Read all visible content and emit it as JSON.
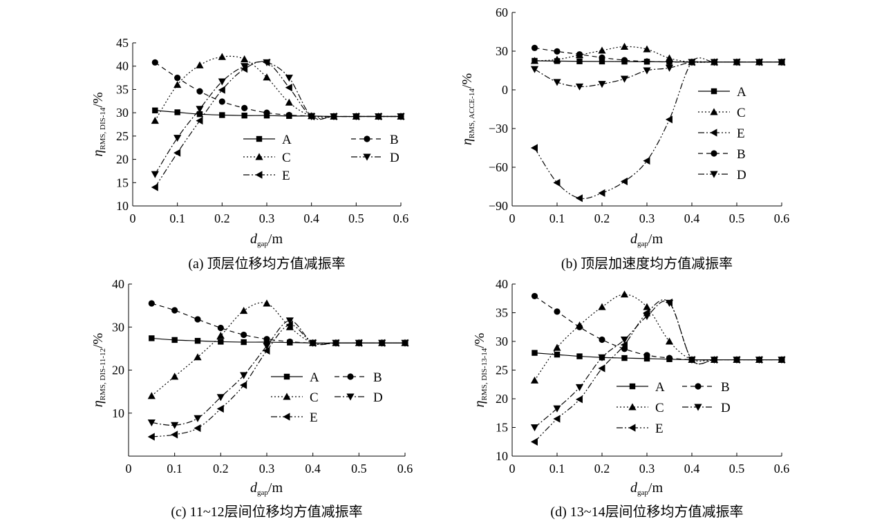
{
  "chart_data": [
    {
      "type": "line",
      "caption": "(a) 顶层位移均方值减振率",
      "xlabel_main": "d",
      "xlabel_sub": "gap",
      "xlabel_unit": "/m",
      "ylabel_main": "η",
      "ylabel_sub": "RMS, DIS-14",
      "ylabel_unit": "/%",
      "xlim": [
        0,
        0.6
      ],
      "ylim": [
        10,
        45
      ],
      "xticks": [
        "0",
        "0.1",
        "0.2",
        "0.3",
        "0.4",
        "0.5",
        "0.6"
      ],
      "yticks": [
        "10",
        "15",
        "20",
        "25",
        "30",
        "35",
        "40",
        "45"
      ],
      "x": [
        0.05,
        0.1,
        0.15,
        0.2,
        0.25,
        0.3,
        0.35,
        0.4,
        0.45,
        0.5,
        0.55,
        0.6
      ],
      "series": [
        {
          "name": "A",
          "marker": "square",
          "dash": "",
          "values": [
            30.5,
            30.1,
            29.7,
            29.5,
            29.4,
            29.4,
            29.3,
            29.3,
            29.2,
            29.2,
            29.2,
            29.2
          ]
        },
        {
          "name": "B",
          "marker": "circle",
          "dash": "7 5",
          "values": [
            40.8,
            37.5,
            34.6,
            32.4,
            31.0,
            30.0,
            29.5,
            29.3,
            29.2,
            29.2,
            29.2,
            29.2
          ]
        },
        {
          "name": "C",
          "marker": "triangle-up",
          "dash": "2 3",
          "values": [
            28.3,
            36.0,
            40.2,
            42.0,
            41.5,
            37.6,
            32.2,
            29.3,
            29.2,
            29.2,
            29.2,
            29.2
          ]
        },
        {
          "name": "D",
          "marker": "triangle-down",
          "dash": "9 3 2 3",
          "values": [
            16.8,
            24.6,
            30.8,
            36.7,
            40.0,
            40.8,
            37.5,
            29.2,
            29.2,
            29.2,
            29.2,
            29.2
          ]
        },
        {
          "name": "E",
          "marker": "triangle-left",
          "dash": "9 3 2 3 2 3",
          "values": [
            14.0,
            21.4,
            28.3,
            34.9,
            39.4,
            40.8,
            35.4,
            29.2,
            29.2,
            29.2,
            29.2,
            29.2
          ]
        }
      ],
      "legend": [
        {
          "name": "A",
          "marker": "square",
          "dash": ""
        },
        {
          "name": "B",
          "marker": "circle",
          "dash": "7 5"
        },
        {
          "name": "C",
          "marker": "triangle-up",
          "dash": "2 3"
        },
        {
          "name": "D",
          "marker": "triangle-down",
          "dash": "9 3 2 3"
        },
        {
          "name": "E",
          "marker": "triangle-left",
          "dash": "9 3 2 3 2 3"
        }
      ],
      "legend_columns": 2,
      "legend_placement": "center-right"
    },
    {
      "type": "line",
      "caption": "(b) 顶层加速度均方值减振率",
      "xlabel_main": "d",
      "xlabel_sub": "gap",
      "xlabel_unit": "/m",
      "ylabel_main": "η",
      "ylabel_sub": "RMS, ACCE-14",
      "ylabel_unit": "/%",
      "xlim": [
        0,
        0.6
      ],
      "ylim": [
        -90,
        60
      ],
      "xticks": [
        "0",
        "0.1",
        "0.2",
        "0.3",
        "0.4",
        "0.5",
        "0.6"
      ],
      "yticks": [
        "−90",
        "−60",
        "−30",
        "0",
        "30",
        "60"
      ],
      "x": [
        0.05,
        0.1,
        0.15,
        0.2,
        0.25,
        0.3,
        0.35,
        0.4,
        0.45,
        0.5,
        0.55,
        0.6
      ],
      "series": [
        {
          "name": "A",
          "marker": "square",
          "dash": "",
          "values": [
            22.5,
            22.3,
            22.1,
            22.0,
            21.9,
            21.8,
            21.7,
            21.6,
            21.5,
            21.5,
            21.5,
            21.5
          ]
        },
        {
          "name": "C",
          "marker": "triangle-up",
          "dash": "2 3",
          "values": [
            22.5,
            23.5,
            27.0,
            30.5,
            33.5,
            31.5,
            24.5,
            21.5,
            21.5,
            21.5,
            21.5,
            21.5
          ]
        },
        {
          "name": "E",
          "marker": "triangle-left",
          "dash": "9 3 2 3 2 3",
          "values": [
            -45.0,
            -72.0,
            -84.0,
            -80.0,
            -71.0,
            -55.0,
            -23.0,
            21.5,
            21.5,
            21.5,
            21.5,
            21.5
          ]
        },
        {
          "name": "B",
          "marker": "circle",
          "dash": "7 5",
          "values": [
            32.5,
            29.8,
            27.5,
            25.0,
            23.0,
            22.0,
            21.6,
            21.5,
            21.5,
            21.5,
            21.5,
            21.5
          ]
        },
        {
          "name": "D",
          "marker": "triangle-down",
          "dash": "9 3 2 3",
          "values": [
            16.0,
            6.0,
            2.5,
            4.5,
            8.5,
            15.0,
            17.0,
            21.5,
            21.5,
            21.5,
            21.5,
            21.5
          ]
        }
      ],
      "legend": [
        {
          "name": "A",
          "marker": "square",
          "dash": ""
        },
        {
          "name": "C",
          "marker": "triangle-up",
          "dash": "2 3"
        },
        {
          "name": "E",
          "marker": "triangle-left",
          "dash": "9 3 2 3 2 3"
        },
        {
          "name": "B",
          "marker": "circle",
          "dash": "7 5"
        },
        {
          "name": "D",
          "marker": "triangle-down",
          "dash": "9 3 2 3"
        }
      ],
      "legend_columns": 1,
      "legend_placement": "right"
    },
    {
      "type": "line",
      "caption": "(c) 11~12层间位移均方值减振率",
      "xlabel_main": "d",
      "xlabel_sub": "gap",
      "xlabel_unit": "/m",
      "ylabel_main": "η",
      "ylabel_sub": "RMS, DIS-11-12",
      "ylabel_unit": "/%",
      "xlim": [
        0,
        0.6
      ],
      "ylim": [
        0,
        40
      ],
      "xticks": [
        "0",
        "0.1",
        "0.2",
        "0.3",
        "0.4",
        "0.5",
        "0.6"
      ],
      "yticks": [
        "",
        "10",
        "20",
        "30",
        "40"
      ],
      "x": [
        0.05,
        0.1,
        0.15,
        0.2,
        0.25,
        0.3,
        0.35,
        0.4,
        0.45,
        0.5,
        0.55,
        0.6
      ],
      "series": [
        {
          "name": "A",
          "marker": "square",
          "dash": "",
          "values": [
            27.4,
            27.0,
            26.8,
            26.6,
            26.5,
            26.5,
            26.4,
            26.3,
            26.3,
            26.3,
            26.3,
            26.3
          ]
        },
        {
          "name": "B",
          "marker": "circle",
          "dash": "7 5",
          "values": [
            35.5,
            33.9,
            31.8,
            29.8,
            28.2,
            27.2,
            26.6,
            26.3,
            26.3,
            26.3,
            26.3,
            26.3
          ]
        },
        {
          "name": "C",
          "marker": "triangle-up",
          "dash": "2 3",
          "values": [
            14.0,
            18.5,
            23.0,
            28.0,
            33.8,
            35.5,
            30.0,
            26.3,
            26.3,
            26.3,
            26.3,
            26.3
          ]
        },
        {
          "name": "D",
          "marker": "triangle-down",
          "dash": "9 3 2 3",
          "values": [
            7.8,
            7.2,
            8.8,
            13.7,
            18.8,
            25.6,
            31.5,
            26.3,
            26.3,
            26.3,
            26.3,
            26.3
          ]
        },
        {
          "name": "E",
          "marker": "triangle-left",
          "dash": "9 3 2 3 2 3",
          "values": [
            4.5,
            5.0,
            6.5,
            11.0,
            16.5,
            24.5,
            30.5,
            26.3,
            26.3,
            26.3,
            26.3,
            26.3
          ]
        }
      ],
      "legend": [
        {
          "name": "A",
          "marker": "square",
          "dash": ""
        },
        {
          "name": "B",
          "marker": "circle",
          "dash": "7 5"
        },
        {
          "name": "C",
          "marker": "triangle-up",
          "dash": "2 3"
        },
        {
          "name": "D",
          "marker": "triangle-down",
          "dash": "9 3 2 3"
        },
        {
          "name": "E",
          "marker": "triangle-left",
          "dash": "9 3 2 3 2 3"
        }
      ],
      "legend_columns": 2,
      "legend_placement": "center-right"
    },
    {
      "type": "line",
      "caption": "(d) 13~14层间位移均方值减振率",
      "xlabel_main": "d",
      "xlabel_sub": "gap",
      "xlabel_unit": "/m",
      "ylabel_main": "η",
      "ylabel_sub": "RMS, DIS-13-14",
      "ylabel_unit": "/%",
      "xlim": [
        0,
        0.6
      ],
      "ylim": [
        10,
        40
      ],
      "xticks": [
        "0",
        "0.1",
        "0.2",
        "0.3",
        "0.4",
        "0.5",
        "0.6"
      ],
      "yticks": [
        "10",
        "15",
        "20",
        "25",
        "30",
        "35",
        "40"
      ],
      "x": [
        0.05,
        0.1,
        0.15,
        0.2,
        0.25,
        0.3,
        0.35,
        0.4,
        0.45,
        0.5,
        0.55,
        0.6
      ],
      "series": [
        {
          "name": "A",
          "marker": "square",
          "dash": "",
          "values": [
            28.0,
            27.7,
            27.4,
            27.2,
            27.1,
            27.0,
            26.9,
            26.8,
            26.8,
            26.8,
            26.8,
            26.8
          ]
        },
        {
          "name": "B",
          "marker": "circle",
          "dash": "7 5",
          "values": [
            37.9,
            35.2,
            32.5,
            30.3,
            28.7,
            27.6,
            27.1,
            26.8,
            26.8,
            26.8,
            26.8,
            26.8
          ]
        },
        {
          "name": "C",
          "marker": "triangle-up",
          "dash": "2 3",
          "values": [
            23.2,
            28.9,
            32.8,
            36.0,
            38.2,
            36.0,
            30.0,
            26.8,
            26.8,
            26.8,
            26.8,
            26.8
          ]
        },
        {
          "name": "D",
          "marker": "triangle-down",
          "dash": "9 3 2 3",
          "values": [
            15.0,
            18.3,
            22.0,
            27.2,
            30.3,
            34.4,
            36.7,
            26.8,
            26.8,
            26.8,
            26.8,
            26.8
          ]
        },
        {
          "name": "E",
          "marker": "triangle-left",
          "dash": "9 3 2 3 2 3",
          "values": [
            12.5,
            16.5,
            19.9,
            25.3,
            29.4,
            35.0,
            36.8,
            26.8,
            26.8,
            26.8,
            26.8,
            26.8
          ]
        }
      ],
      "legend": [
        {
          "name": "A",
          "marker": "square",
          "dash": ""
        },
        {
          "name": "B",
          "marker": "circle",
          "dash": "7 5"
        },
        {
          "name": "C",
          "marker": "triangle-up",
          "dash": "2 3"
        },
        {
          "name": "D",
          "marker": "triangle-down",
          "dash": "9 3 2 3"
        },
        {
          "name": "E",
          "marker": "triangle-left",
          "dash": "9 3 2 3 2 3"
        }
      ],
      "legend_columns": 2,
      "legend_placement": "center-right"
    }
  ]
}
